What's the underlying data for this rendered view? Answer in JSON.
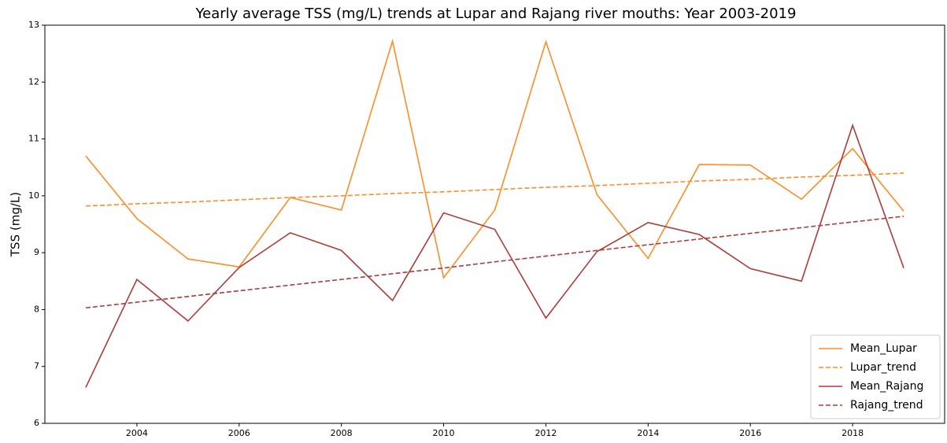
{
  "chart_data": {
    "type": "line",
    "title": "Yearly average TSS (mg/L) trends at Lupar and Rajang river mouths: Year 2003-2019",
    "y_label": "TSS (mg/L)",
    "x": [
      2003,
      2004,
      2005,
      2006,
      2007,
      2008,
      2009,
      2010,
      2011,
      2012,
      2013,
      2014,
      2015,
      2016,
      2017,
      2018,
      2019
    ],
    "series": [
      {
        "name": "Mean_Lupar",
        "color": "#ff8c26",
        "linestyle": "solid",
        "values": [
          10.7,
          9.6,
          8.89,
          8.75,
          9.97,
          9.75,
          12.72,
          8.56,
          9.75,
          12.71,
          10.02,
          8.9,
          10.55,
          10.54,
          9.94,
          10.83,
          9.73
        ]
      },
      {
        "name": "Lupar_trend",
        "color": "#ff8c26",
        "linestyle": "dashed",
        "values": [
          9.82,
          9.86,
          9.89,
          9.93,
          9.97,
          10.0,
          10.04,
          10.07,
          10.11,
          10.15,
          10.18,
          10.22,
          10.26,
          10.29,
          10.33,
          10.36,
          10.4
        ]
      },
      {
        "name": "Mean_Rajang",
        "color": "#b03a3a",
        "linestyle": "solid",
        "values": [
          6.63,
          8.53,
          7.8,
          8.74,
          9.35,
          9.04,
          8.16,
          9.7,
          9.41,
          7.85,
          9.02,
          9.53,
          9.32,
          8.72,
          8.5,
          11.24,
          8.73
        ]
      },
      {
        "name": "Rajang_trend",
        "color": "#b03a3a",
        "linestyle": "dashed",
        "values": [
          8.03,
          8.13,
          8.23,
          8.33,
          8.43,
          8.53,
          8.63,
          8.73,
          8.84,
          8.94,
          9.04,
          9.14,
          9.24,
          9.34,
          9.44,
          9.54,
          9.64
        ]
      }
    ],
    "xlim": [
      2002.2,
      2019.8
    ],
    "xticks": [
      2004,
      2006,
      2008,
      2010,
      2012,
      2014,
      2016,
      2018
    ],
    "ylim": [
      6,
      13
    ],
    "yticks": [
      6,
      7,
      8,
      9,
      10,
      11,
      12,
      13
    ],
    "legend": "lower right"
  }
}
